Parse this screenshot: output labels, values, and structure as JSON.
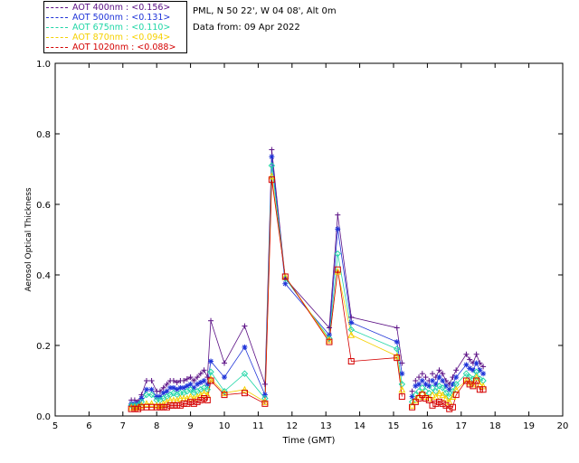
{
  "header": {
    "location": "PML, N 50 22', W 04 08', Alt 0m",
    "date_line": "Data from: 09 Apr 2022"
  },
  "legend": [
    {
      "label": "AOT  400nm : <0.156>",
      "color": "#5a0f84"
    },
    {
      "label": "AOT  500nm : <0.131>",
      "color": "#1d32d8"
    },
    {
      "label": "AOT  675nm : <0.110>",
      "color": "#1fd6a6"
    },
    {
      "label": "AOT  870nm : <0.094>",
      "color": "#f5d000"
    },
    {
      "label": "AOT 1020nm : <0.088>",
      "color": "#d40000"
    }
  ],
  "chart_data": {
    "type": "scatter",
    "xlabel": "Time (GMT)",
    "ylabel": "Aerosol Optical Thickness",
    "xlim": [
      5,
      20
    ],
    "ylim": [
      0,
      1.0
    ],
    "xticks": [
      5,
      6,
      7,
      8,
      9,
      10,
      11,
      12,
      13,
      14,
      15,
      16,
      17,
      18,
      19,
      20
    ],
    "yticks": [
      "0.0",
      "0.2",
      "0.4",
      "0.6",
      "0.8",
      "1.0"
    ],
    "segments": [
      [
        0,
        33
      ],
      [
        40,
        53
      ],
      [
        54,
        66
      ]
    ],
    "x": [
      7.25,
      7.35,
      7.45,
      7.55,
      7.7,
      7.85,
      8.0,
      8.1,
      8.2,
      8.3,
      8.4,
      8.5,
      8.6,
      8.7,
      8.8,
      8.9,
      9.0,
      9.1,
      9.2,
      9.3,
      9.4,
      9.5,
      9.6,
      10.0,
      10.6,
      11.2,
      11.4,
      11.8,
      13.1,
      13.35,
      13.75,
      15.1,
      15.25,
      15.55,
      15.65,
      15.75,
      15.85,
      15.95,
      16.05,
      16.15,
      16.25,
      16.35,
      16.45,
      16.55,
      16.65,
      16.75,
      16.85,
      17.15,
      17.25,
      17.35,
      17.45,
      17.55,
      17.65
    ],
    "series": [
      {
        "name": "AOT 400nm",
        "marker": "plus",
        "color": "#5a0f84",
        "values": [
          0.045,
          0.045,
          0.04,
          0.06,
          0.1,
          0.1,
          0.07,
          0.07,
          0.08,
          0.09,
          0.1,
          0.1,
          0.095,
          0.1,
          0.1,
          0.105,
          0.11,
          0.1,
          0.11,
          0.12,
          0.13,
          0.11,
          0.27,
          0.15,
          0.255,
          0.09,
          0.755,
          0.39,
          0.25,
          0.57,
          0.28,
          0.25,
          0.15,
          0.07,
          0.1,
          0.11,
          0.12,
          0.11,
          0.1,
          0.12,
          0.11,
          0.13,
          0.12,
          0.1,
          0.09,
          0.11,
          0.13,
          0.175,
          0.16,
          0.15,
          0.175,
          0.15,
          0.14
        ]
      },
      {
        "name": "AOT 500nm",
        "marker": "star",
        "color": "#1d32d8",
        "values": [
          0.035,
          0.035,
          0.035,
          0.05,
          0.075,
          0.075,
          0.055,
          0.055,
          0.065,
          0.07,
          0.08,
          0.08,
          0.075,
          0.08,
          0.08,
          0.085,
          0.09,
          0.08,
          0.09,
          0.095,
          0.1,
          0.09,
          0.155,
          0.11,
          0.195,
          0.06,
          0.735,
          0.375,
          0.23,
          0.53,
          0.265,
          0.21,
          0.12,
          0.055,
          0.085,
          0.09,
          0.1,
          0.09,
          0.085,
          0.1,
          0.09,
          0.11,
          0.1,
          0.085,
          0.075,
          0.09,
          0.11,
          0.145,
          0.135,
          0.13,
          0.15,
          0.13,
          0.12
        ]
      },
      {
        "name": "AOT 675nm",
        "marker": "diamond",
        "color": "#1fd6a6",
        "values": [
          0.03,
          0.03,
          0.03,
          0.04,
          0.06,
          0.06,
          0.045,
          0.045,
          0.05,
          0.055,
          0.06,
          0.065,
          0.06,
          0.065,
          0.065,
          0.07,
          0.075,
          0.065,
          0.07,
          0.075,
          0.08,
          0.075,
          0.125,
          0.07,
          0.12,
          0.05,
          0.71,
          0.39,
          0.22,
          0.46,
          0.245,
          0.19,
          0.09,
          0.04,
          0.06,
          0.07,
          0.08,
          0.07,
          0.065,
          0.08,
          0.07,
          0.085,
          0.08,
          0.065,
          0.055,
          0.07,
          0.09,
          0.12,
          0.11,
          0.105,
          0.125,
          0.105,
          0.1
        ]
      },
      {
        "name": "AOT 870nm",
        "marker": "triangle",
        "color": "#f5d000",
        "values": [
          0.025,
          0.025,
          0.025,
          0.03,
          0.035,
          0.035,
          0.03,
          0.03,
          0.035,
          0.04,
          0.045,
          0.045,
          0.045,
          0.05,
          0.05,
          0.05,
          0.055,
          0.05,
          0.055,
          0.06,
          0.065,
          0.06,
          0.105,
          0.065,
          0.075,
          0.04,
          0.68,
          0.395,
          0.215,
          0.41,
          0.23,
          0.17,
          0.075,
          0.03,
          0.045,
          0.055,
          0.065,
          0.055,
          0.05,
          0.06,
          0.055,
          0.065,
          0.06,
          0.05,
          0.04,
          0.055,
          0.075,
          0.1,
          0.095,
          0.09,
          0.11,
          0.09,
          0.085
        ]
      },
      {
        "name": "AOT 1020nm",
        "marker": "square",
        "color": "#d40000",
        "values": [
          0.02,
          0.02,
          0.02,
          0.025,
          0.025,
          0.025,
          0.025,
          0.025,
          0.025,
          0.025,
          0.03,
          0.03,
          0.03,
          0.03,
          0.035,
          0.035,
          0.04,
          0.035,
          0.04,
          0.045,
          0.05,
          0.045,
          0.1,
          0.06,
          0.065,
          0.035,
          0.67,
          0.395,
          0.21,
          0.415,
          0.155,
          0.165,
          0.055,
          0.025,
          0.04,
          0.05,
          0.06,
          0.05,
          0.045,
          0.03,
          0.035,
          0.04,
          0.035,
          0.03,
          0.02,
          0.025,
          0.06,
          0.1,
          0.09,
          0.085,
          0.1,
          0.075,
          0.075
        ]
      }
    ]
  }
}
